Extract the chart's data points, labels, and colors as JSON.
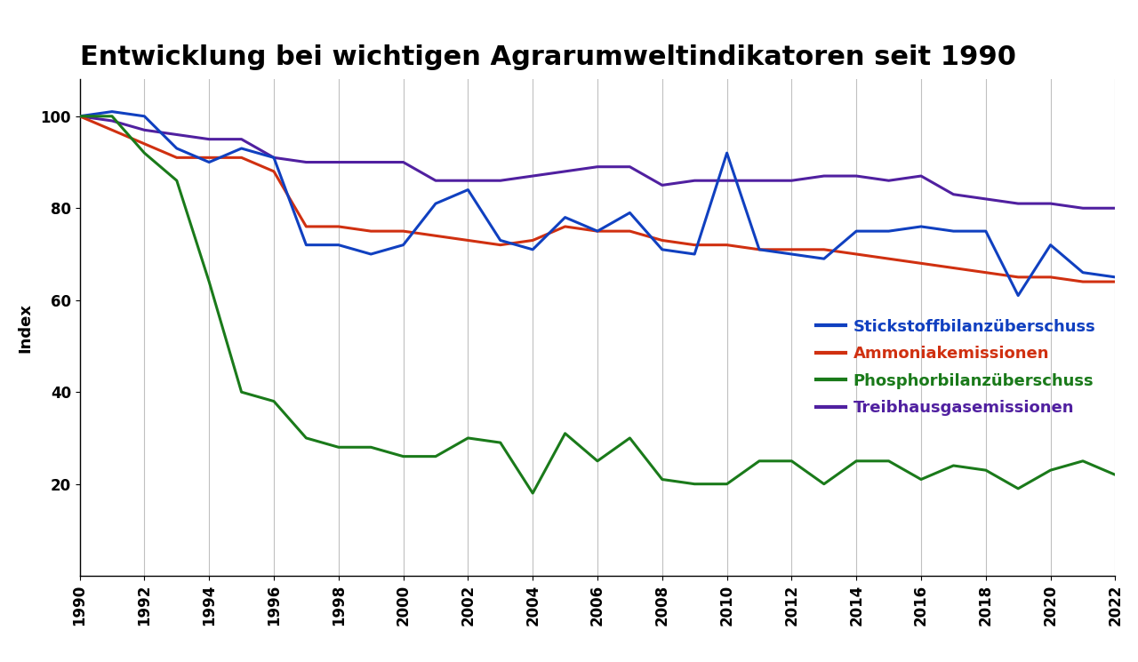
{
  "title": "Entwicklung bei wichtigen Agrarumweltindikatoren seit 1990",
  "ylabel": "Index",
  "years": [
    1990,
    1991,
    1992,
    1993,
    1994,
    1995,
    1996,
    1997,
    1998,
    1999,
    2000,
    2001,
    2002,
    2003,
    2004,
    2005,
    2006,
    2007,
    2008,
    2009,
    2010,
    2011,
    2012,
    2013,
    2014,
    2015,
    2016,
    2017,
    2018,
    2019,
    2020,
    2021,
    2022
  ],
  "stickstoff": [
    100,
    101,
    100,
    93,
    90,
    93,
    91,
    72,
    72,
    70,
    72,
    81,
    84,
    73,
    71,
    78,
    75,
    79,
    71,
    70,
    92,
    71,
    70,
    69,
    75,
    75,
    76,
    75,
    75,
    61,
    72,
    66,
    65
  ],
  "ammoniak": [
    100,
    97,
    94,
    91,
    91,
    91,
    88,
    76,
    76,
    75,
    75,
    74,
    73,
    72,
    73,
    76,
    75,
    75,
    73,
    72,
    72,
    71,
    71,
    71,
    70,
    69,
    68,
    67,
    66,
    65,
    65,
    64,
    64
  ],
  "phosphor": [
    100,
    100,
    92,
    86,
    64,
    40,
    38,
    30,
    28,
    28,
    26,
    26,
    30,
    29,
    18,
    31,
    25,
    30,
    21,
    20,
    20,
    25,
    25,
    20,
    25,
    25,
    21,
    24,
    23,
    19,
    23,
    25,
    22
  ],
  "treibhaus": [
    100,
    99,
    97,
    96,
    95,
    95,
    91,
    90,
    90,
    90,
    90,
    86,
    86,
    86,
    87,
    88,
    89,
    89,
    85,
    86,
    86,
    86,
    86,
    87,
    87,
    86,
    87,
    83,
    82,
    81,
    81,
    80,
    80
  ],
  "stickstoff_color": "#1040c0",
  "ammoniak_color": "#d03010",
  "phosphor_color": "#1a7a1a",
  "treibhaus_color": "#5020a0",
  "background_color": "#ffffff",
  "grid_color": "#c0c0c0",
  "ylim": [
    0,
    108
  ],
  "yticks": [
    20,
    40,
    60,
    80,
    100
  ],
  "legend_labels": [
    "Stickstoffbilanzüberschuss",
    "Ammoniakemissionen",
    "Phosphorbilanzüberschuss",
    "Treibhausgasemissionen"
  ],
  "title_fontsize": 22,
  "ylabel_fontsize": 13,
  "tick_fontsize": 12,
  "legend_fontsize": 13,
  "line_width": 2.2
}
